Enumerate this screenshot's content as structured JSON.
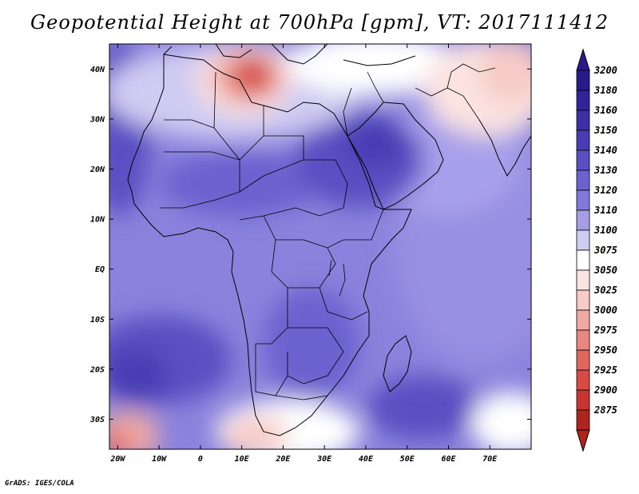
{
  "title": "Geopotential Height at 700hPa [gpm], VT: 2017111412",
  "credit": "GrADS: IGES/COLA",
  "map": {
    "lon_range": [
      -22,
      80
    ],
    "lat_range": [
      -36,
      45
    ],
    "lat_ticks": [
      {
        "value": 40,
        "label": "40N"
      },
      {
        "value": 30,
        "label": "30N"
      },
      {
        "value": 20,
        "label": "20N"
      },
      {
        "value": 10,
        "label": "10N"
      },
      {
        "value": 0,
        "label": "EQ"
      },
      {
        "value": -10,
        "label": "10S"
      },
      {
        "value": -20,
        "label": "20S"
      },
      {
        "value": -30,
        "label": "30S"
      }
    ],
    "lon_ticks": [
      {
        "value": -20,
        "label": "20W"
      },
      {
        "value": -10,
        "label": "10W"
      },
      {
        "value": 0,
        "label": "0"
      },
      {
        "value": 10,
        "label": "10E"
      },
      {
        "value": 20,
        "label": "20E"
      },
      {
        "value": 30,
        "label": "30E"
      },
      {
        "value": 40,
        "label": "40E"
      },
      {
        "value": 50,
        "label": "50E"
      },
      {
        "value": 60,
        "label": "60E"
      },
      {
        "value": 70,
        "label": "70E"
      }
    ]
  },
  "colorbar": {
    "levels": [
      {
        "label": "3200",
        "color": "#2a1a8c"
      },
      {
        "label": "3180",
        "color": "#332299"
      },
      {
        "label": "3160",
        "color": "#3d2fa6"
      },
      {
        "label": "3150",
        "color": "#4a3db4"
      },
      {
        "label": "3140",
        "color": "#5a4fc2"
      },
      {
        "label": "3130",
        "color": "#6b62cf"
      },
      {
        "label": "3120",
        "color": "#8078da"
      },
      {
        "label": "3110",
        "color": "#a59ee6"
      },
      {
        "label": "3100",
        "color": "#cfcbf2"
      },
      {
        "label": "3075",
        "color": "#ffffff"
      },
      {
        "label": "3050",
        "color": "#fbe3e1"
      },
      {
        "label": "3025",
        "color": "#f7cbc6"
      },
      {
        "label": "3000",
        "color": "#f0aaa4"
      },
      {
        "label": "2975",
        "color": "#e88880"
      },
      {
        "label": "2950",
        "color": "#e06660"
      },
      {
        "label": "2925",
        "color": "#d84a44"
      },
      {
        "label": "2900",
        "color": "#c83530"
      },
      {
        "label": "2875",
        "color": "#b02420"
      }
    ],
    "top_arrow_color": "#2a1a8c",
    "bottom_arrow_color": "#b02420"
  }
}
